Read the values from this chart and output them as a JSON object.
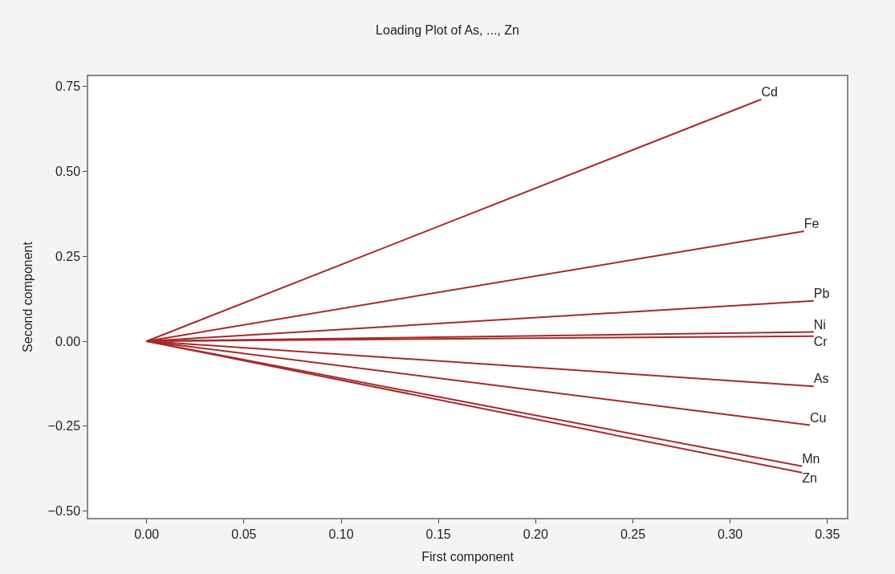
{
  "chart_data": {
    "type": "line",
    "title": "Loading Plot of As, ..., Zn",
    "xlabel": "First component",
    "ylabel": "Second component",
    "xlim": [
      -0.03,
      0.36
    ],
    "ylim": [
      -0.52,
      0.78
    ],
    "xticks": [
      {
        "value": 0,
        "label": "0.00"
      },
      {
        "value": 0.05,
        "label": "0.05"
      },
      {
        "value": 0.1,
        "label": "0.10"
      },
      {
        "value": 0.15,
        "label": "0.15"
      },
      {
        "value": 0.2,
        "label": "0.20"
      },
      {
        "value": 0.25,
        "label": "0.25"
      },
      {
        "value": 0.3,
        "label": "0.30"
      },
      {
        "value": 0.35,
        "label": "0.35"
      }
    ],
    "yticks": [
      {
        "value": -0.5,
        "label": "−0.50"
      },
      {
        "value": -0.25,
        "label": "−0.25"
      },
      {
        "value": 0,
        "label": "0.00"
      },
      {
        "value": 0.25,
        "label": "0.25"
      },
      {
        "value": 0.5,
        "label": "0.50"
      },
      {
        "value": 0.75,
        "label": "0.75"
      }
    ],
    "legend": false,
    "marker": "none",
    "line_style": "solid",
    "series": [
      {
        "name": "Cd",
        "color": "#a52a2a",
        "x": [
          0,
          0.316
        ],
        "values": [
          0,
          0.712
        ]
      },
      {
        "name": "Fe",
        "color": "#a52a2a",
        "x": [
          0,
          0.338
        ],
        "values": [
          0,
          0.324
        ]
      },
      {
        "name": "Pb",
        "color": "#a52a2a",
        "x": [
          0,
          0.343
        ],
        "values": [
          0,
          0.119
        ]
      },
      {
        "name": "Ni",
        "color": "#a52a2a",
        "x": [
          0,
          0.343
        ],
        "values": [
          0,
          0.027
        ]
      },
      {
        "name": "Cr",
        "color": "#a52a2a",
        "x": [
          0,
          0.343
        ],
        "values": [
          0,
          0.015
        ]
      },
      {
        "name": "As",
        "color": "#a52a2a",
        "x": [
          0,
          0.343
        ],
        "values": [
          0,
          -0.133
        ]
      },
      {
        "name": "Cu",
        "color": "#a52a2a",
        "x": [
          0,
          0.341
        ],
        "values": [
          0,
          -0.247
        ]
      },
      {
        "name": "Mn",
        "color": "#a52a2a",
        "x": [
          0,
          0.337
        ],
        "values": [
          0,
          -0.368
        ]
      },
      {
        "name": "Zn",
        "color": "#a52a2a",
        "x": [
          0,
          0.337
        ],
        "values": [
          0,
          -0.387
        ]
      }
    ]
  }
}
